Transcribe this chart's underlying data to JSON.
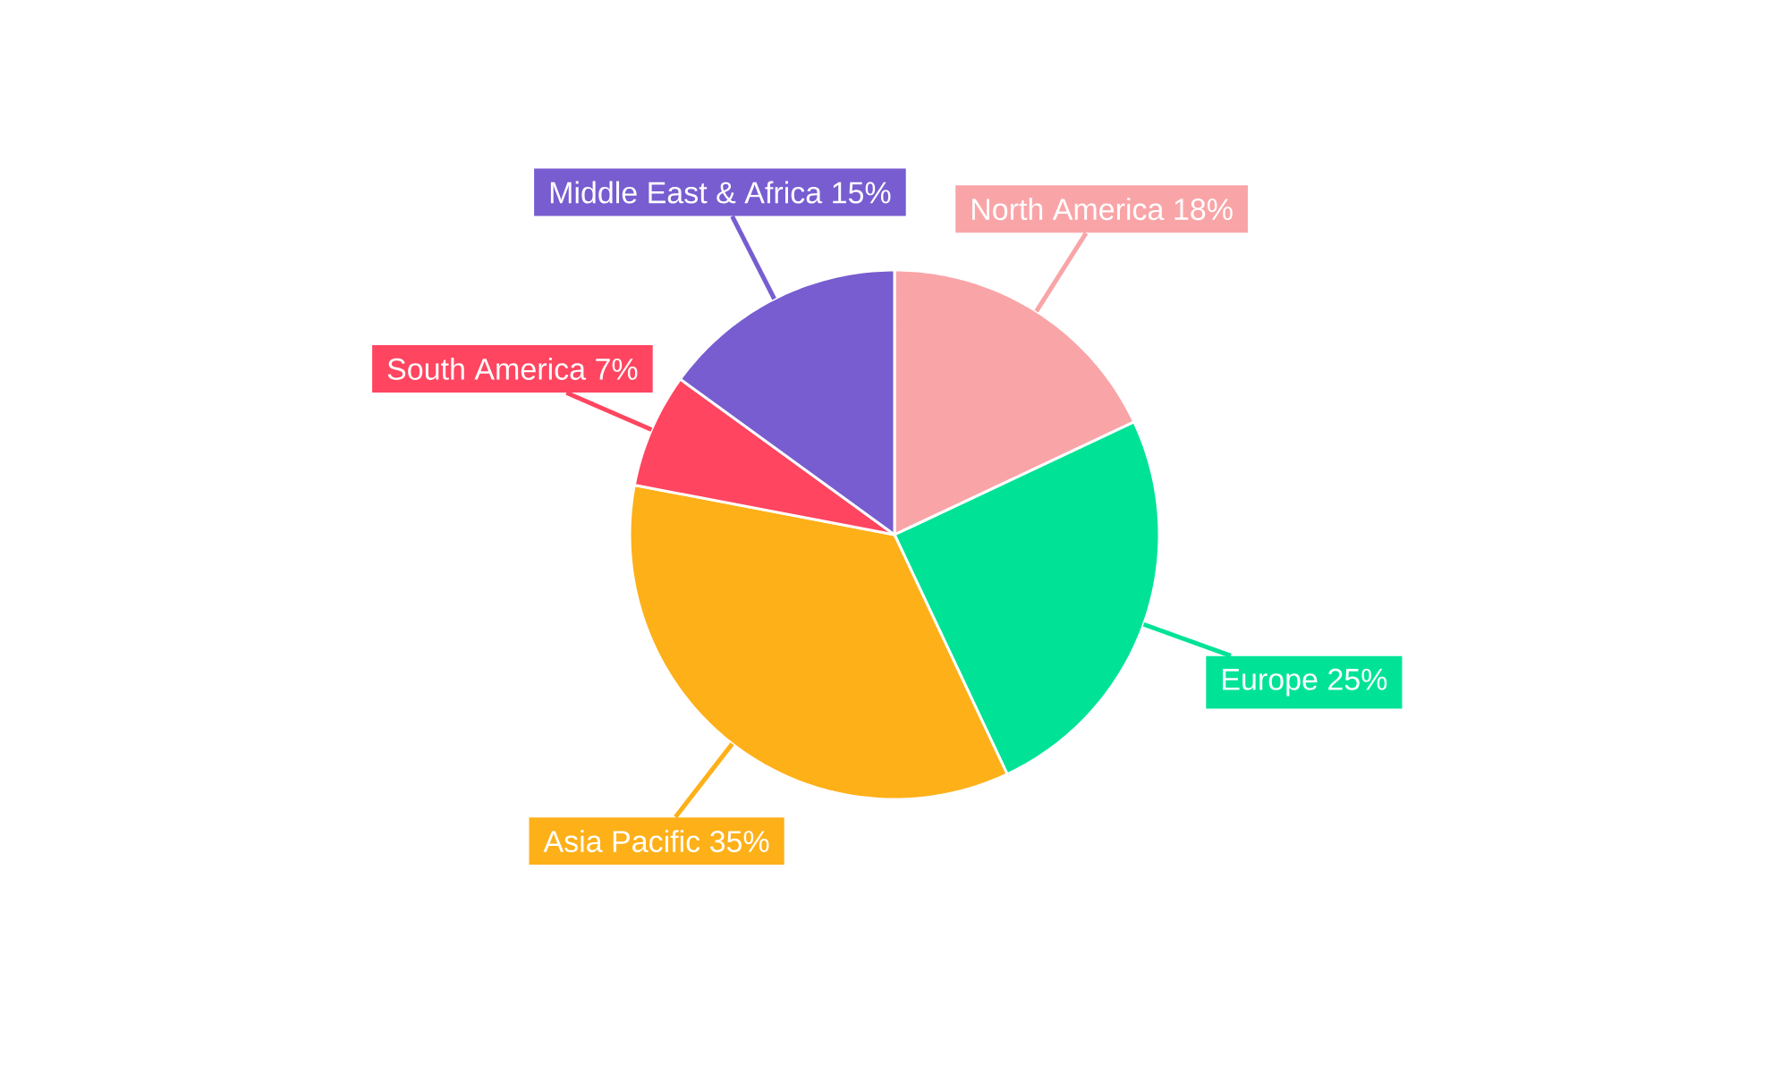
{
  "chart_data": {
    "type": "pie",
    "categories": [
      "North America",
      "Europe",
      "Asia Pacific",
      "South America",
      "Middle East & Africa"
    ],
    "values": [
      18,
      25,
      35,
      7,
      15
    ],
    "value_labels": [
      "18%",
      "25%",
      "35%",
      "7%",
      "15%"
    ],
    "colors": [
      "#f9a5a8",
      "#00e396",
      "#feb019",
      "#ff4560",
      "#775dd0"
    ]
  }
}
